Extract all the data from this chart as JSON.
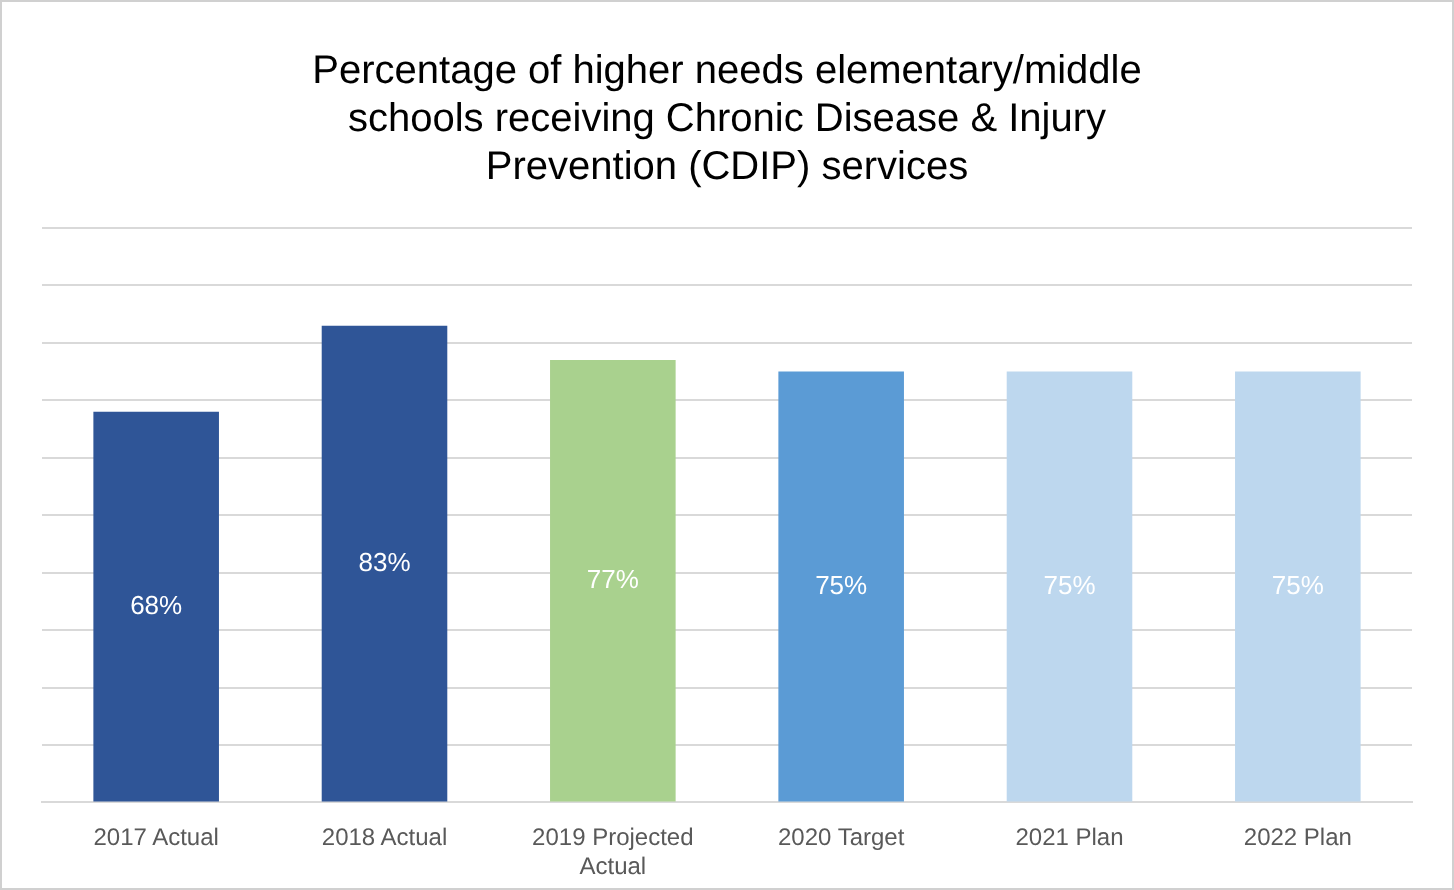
{
  "chart_data": {
    "type": "bar",
    "title": "Percentage of higher needs elementary/middle schools receiving Chronic Disease & Injury Prevention (CDIP) services",
    "categories": [
      "2017 Actual",
      "2018 Actual",
      "2019 Projected Actual",
      "2020 Target",
      "2021 Plan",
      "2022 Plan"
    ],
    "values": [
      68,
      83,
      77,
      75,
      75,
      75
    ],
    "colors": [
      "#2f5597",
      "#2f5597",
      "#a9d18e",
      "#5b9bd5",
      "#bdd7ee",
      "#bdd7ee"
    ],
    "value_labels": [
      "68%",
      "83%",
      "77%",
      "75%",
      "75%",
      "75%"
    ],
    "ylim": [
      0,
      100
    ],
    "yticks": [
      {
        "value": 0,
        "label": null
      },
      {
        "value": 10,
        "label": null
      },
      {
        "value": 20,
        "label": null
      },
      {
        "value": 30,
        "label": null
      },
      {
        "value": 40,
        "label": null
      },
      {
        "value": 50,
        "label": null
      },
      {
        "value": 60,
        "label": null
      },
      {
        "value": 70,
        "label": null
      },
      {
        "value": 80,
        "label": null
      },
      {
        "value": 90,
        "label": null
      },
      {
        "value": 100,
        "label": null
      }
    ],
    "grid": "y",
    "tick_labels": "x",
    "legend": false
  }
}
